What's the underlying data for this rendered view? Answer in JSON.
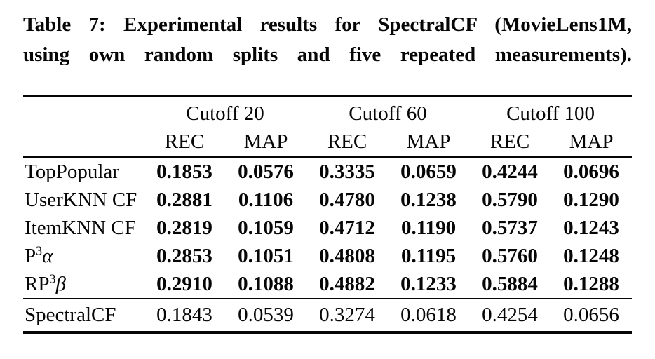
{
  "caption": {
    "line1": "Table 7: Experimental results for SpectralCF (MovieLens1M,",
    "line2": "using own random splits and five repeated measurements)."
  },
  "table": {
    "column_groups": [
      {
        "label": "Cutoff 20"
      },
      {
        "label": "Cutoff 60"
      },
      {
        "label": "Cutoff 100"
      }
    ],
    "subheaders": [
      "REC",
      "MAP",
      "REC",
      "MAP",
      "REC",
      "MAP"
    ],
    "rows": [
      {
        "method": [
          {
            "t": "TopPopular"
          }
        ],
        "bold": true,
        "values": [
          "0.1853",
          "0.0576",
          "0.3335",
          "0.0659",
          "0.4244",
          "0.0696"
        ]
      },
      {
        "method": [
          {
            "t": "UserKNN CF"
          }
        ],
        "bold": true,
        "values": [
          "0.2881",
          "0.1106",
          "0.4780",
          "0.1238",
          "0.5790",
          "0.1290"
        ]
      },
      {
        "method": [
          {
            "t": "ItemKNN CF"
          }
        ],
        "bold": true,
        "values": [
          "0.2819",
          "0.1059",
          "0.4712",
          "0.1190",
          "0.5737",
          "0.1243"
        ]
      },
      {
        "method": [
          {
            "t": "P"
          },
          {
            "t": "3",
            "sup": true
          },
          {
            "t": "α",
            "italic": true
          }
        ],
        "bold": true,
        "values": [
          "0.2853",
          "0.1051",
          "0.4808",
          "0.1195",
          "0.5760",
          "0.1248"
        ]
      },
      {
        "method": [
          {
            "t": "RP"
          },
          {
            "t": "3",
            "sup": true
          },
          {
            "t": "β",
            "italic": true
          }
        ],
        "bold": true,
        "values": [
          "0.2910",
          "0.1088",
          "0.4882",
          "0.1233",
          "0.5884",
          "0.1288"
        ]
      }
    ],
    "footer_row": {
      "method": [
        {
          "t": "SpectralCF"
        }
      ],
      "bold": false,
      "values": [
        "0.1843",
        "0.0539",
        "0.3274",
        "0.0618",
        "0.4254",
        "0.0656"
      ]
    }
  },
  "colors": {
    "text": "#060606",
    "background": "#ffffff",
    "rule": "#060606"
  }
}
